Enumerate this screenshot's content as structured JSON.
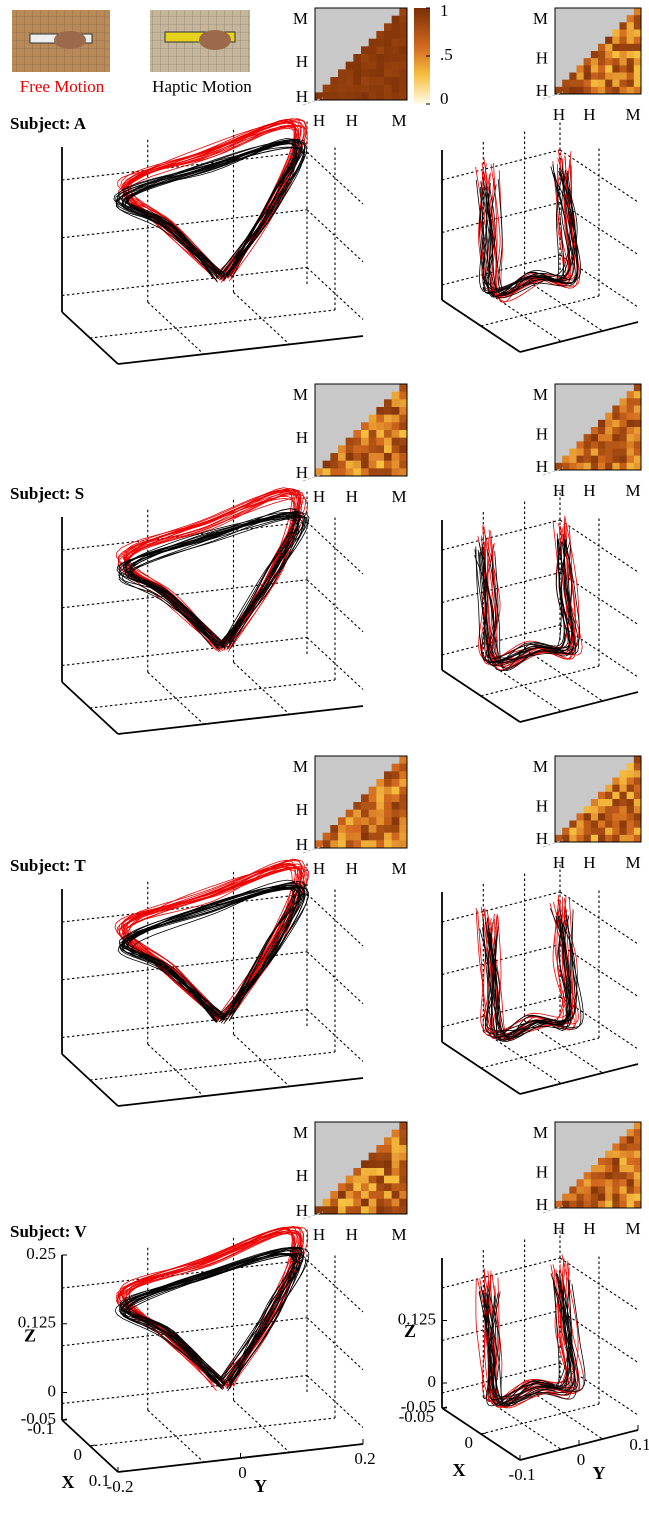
{
  "legend": {
    "free": "Free Motion",
    "haptic": "Haptic Motion"
  },
  "colorbar": {
    "ticks": [
      1,
      {
        "value": 0.5,
        "label": ".5"
      },
      0
    ]
  },
  "heatmap_labels": {
    "rows": [
      "M",
      "H",
      "H"
    ],
    "cols": [
      "H",
      "H",
      "M"
    ]
  },
  "subjects": [
    {
      "label": "Subject: A"
    },
    {
      "label": "Subject: S"
    },
    {
      "label": "Subject: T"
    },
    {
      "label": "Subject: V"
    }
  ],
  "axes_left": {
    "z_label": "Z",
    "x_label": "X",
    "y_label": "Y",
    "zlim": [
      -0.05,
      0.25
    ],
    "zticks": [
      0.25,
      0.125,
      0,
      -0.05
    ],
    "xlim": [
      -0.1,
      0.1
    ],
    "xticks": [
      -0.1,
      0,
      0.1
    ],
    "ylim": [
      -0.2,
      0.2
    ],
    "yticks": [
      -0.2,
      0,
      0.2
    ]
  },
  "axes_right": {
    "z_label": "Z",
    "x_label": "X",
    "y_label": "Y",
    "zlim": [
      -0.05,
      0.25
    ],
    "zticks": [
      0.125,
      0,
      -0.05
    ],
    "xlim": [
      -0.05,
      0.05
    ],
    "xticks": [
      -0.05,
      0
    ],
    "ylim": [
      -0.1,
      0.1
    ],
    "yticks": [
      -0.1,
      0,
      0.1
    ]
  }
}
